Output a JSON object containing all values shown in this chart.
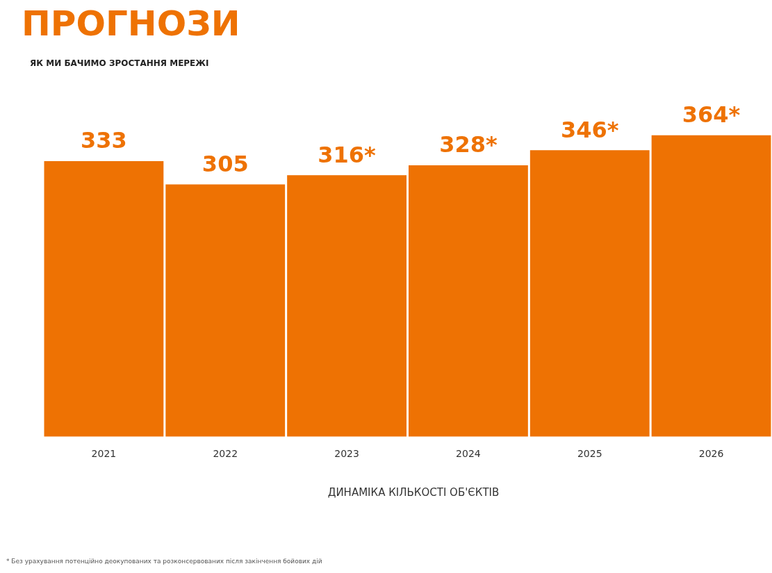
{
  "chart_data": {
    "type": "bar",
    "title": "ПРОГНОЗИ",
    "subtitle": "ЯК МИ БАЧИМО ЗРОСТАННЯ МЕРЕЖІ",
    "xlabel": "ДИНАМІКА КІЛЬКОСТІ ОБ'ЄКТІВ",
    "categories": [
      "2021",
      "2022",
      "2023",
      "2024",
      "2025",
      "2026"
    ],
    "values": [
      333,
      305,
      316,
      328,
      346,
      364
    ],
    "value_labels": [
      "333",
      "305",
      "316*",
      "328*",
      "346*",
      "364*"
    ],
    "color": "#ee7203",
    "annotations": [
      "* Без урахування потенційно деокупованих та розконсервованих після закінчення бойових дій"
    ],
    "grid": false
  }
}
